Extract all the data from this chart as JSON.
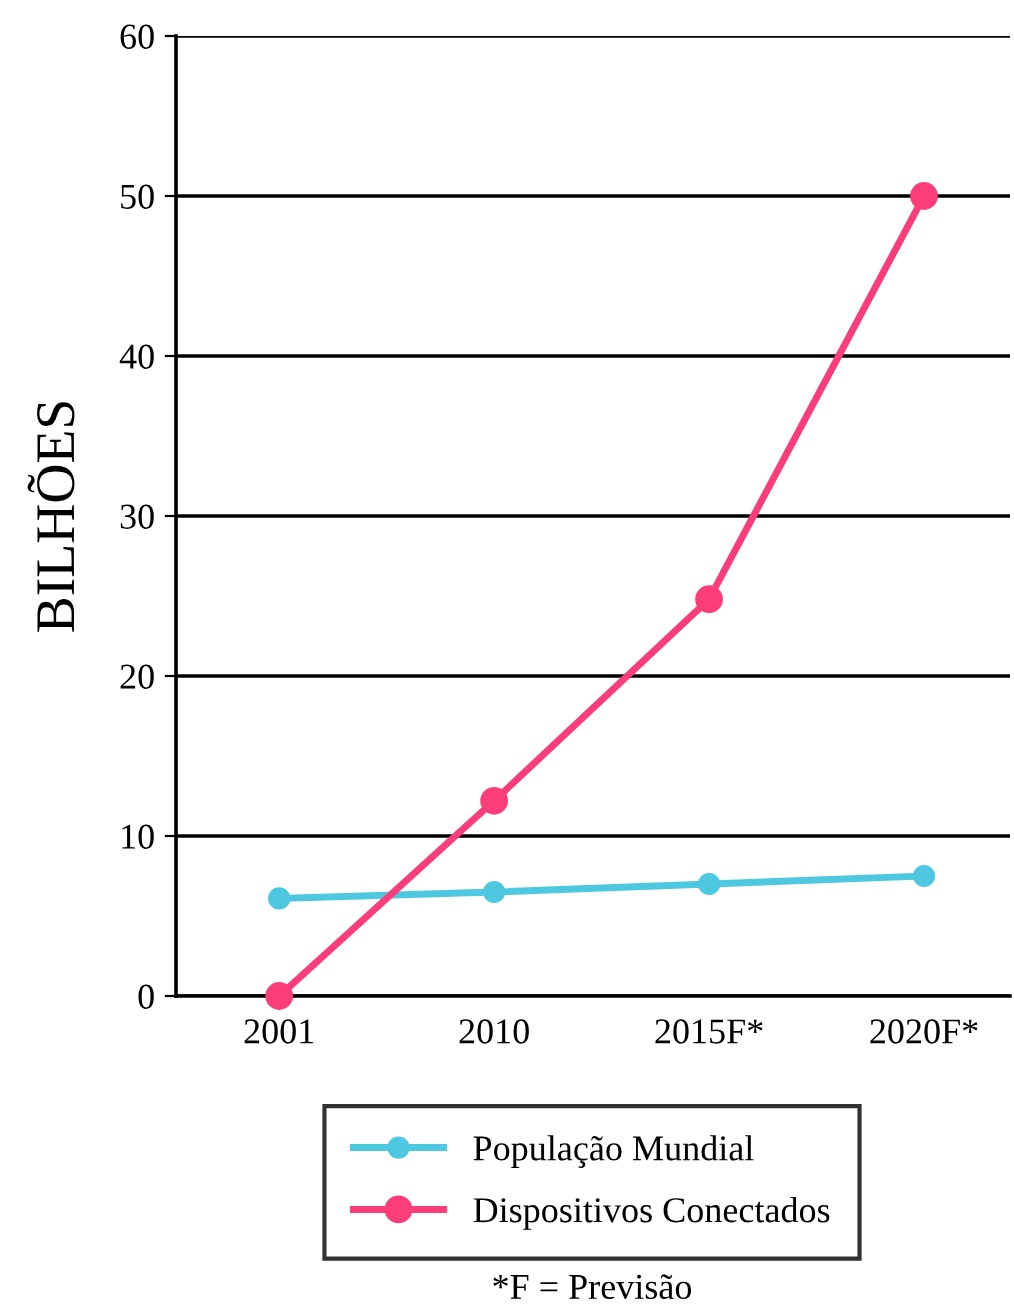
{
  "chart_data": {
    "type": "line",
    "ylabel": "BILHÕES",
    "categories": [
      "2001",
      "2010",
      "2015F*",
      "2020F*"
    ],
    "series": [
      {
        "name": "População Mundial",
        "color": "#4dc8e0",
        "values": [
          6.1,
          6.5,
          7.0,
          7.5
        ],
        "marker": "circle"
      },
      {
        "name": "Dispositivos Conectados",
        "color": "#fb3d7a",
        "values": [
          0,
          12.2,
          24.8,
          50
        ],
        "marker": "circle"
      }
    ],
    "ylim": [
      0,
      60
    ],
    "yticks": [
      0,
      10,
      20,
      30,
      40,
      50,
      60
    ],
    "grid": "y",
    "legend": "bottom",
    "line_style": "solid",
    "annotations": [
      "*F = Previsão"
    ]
  }
}
